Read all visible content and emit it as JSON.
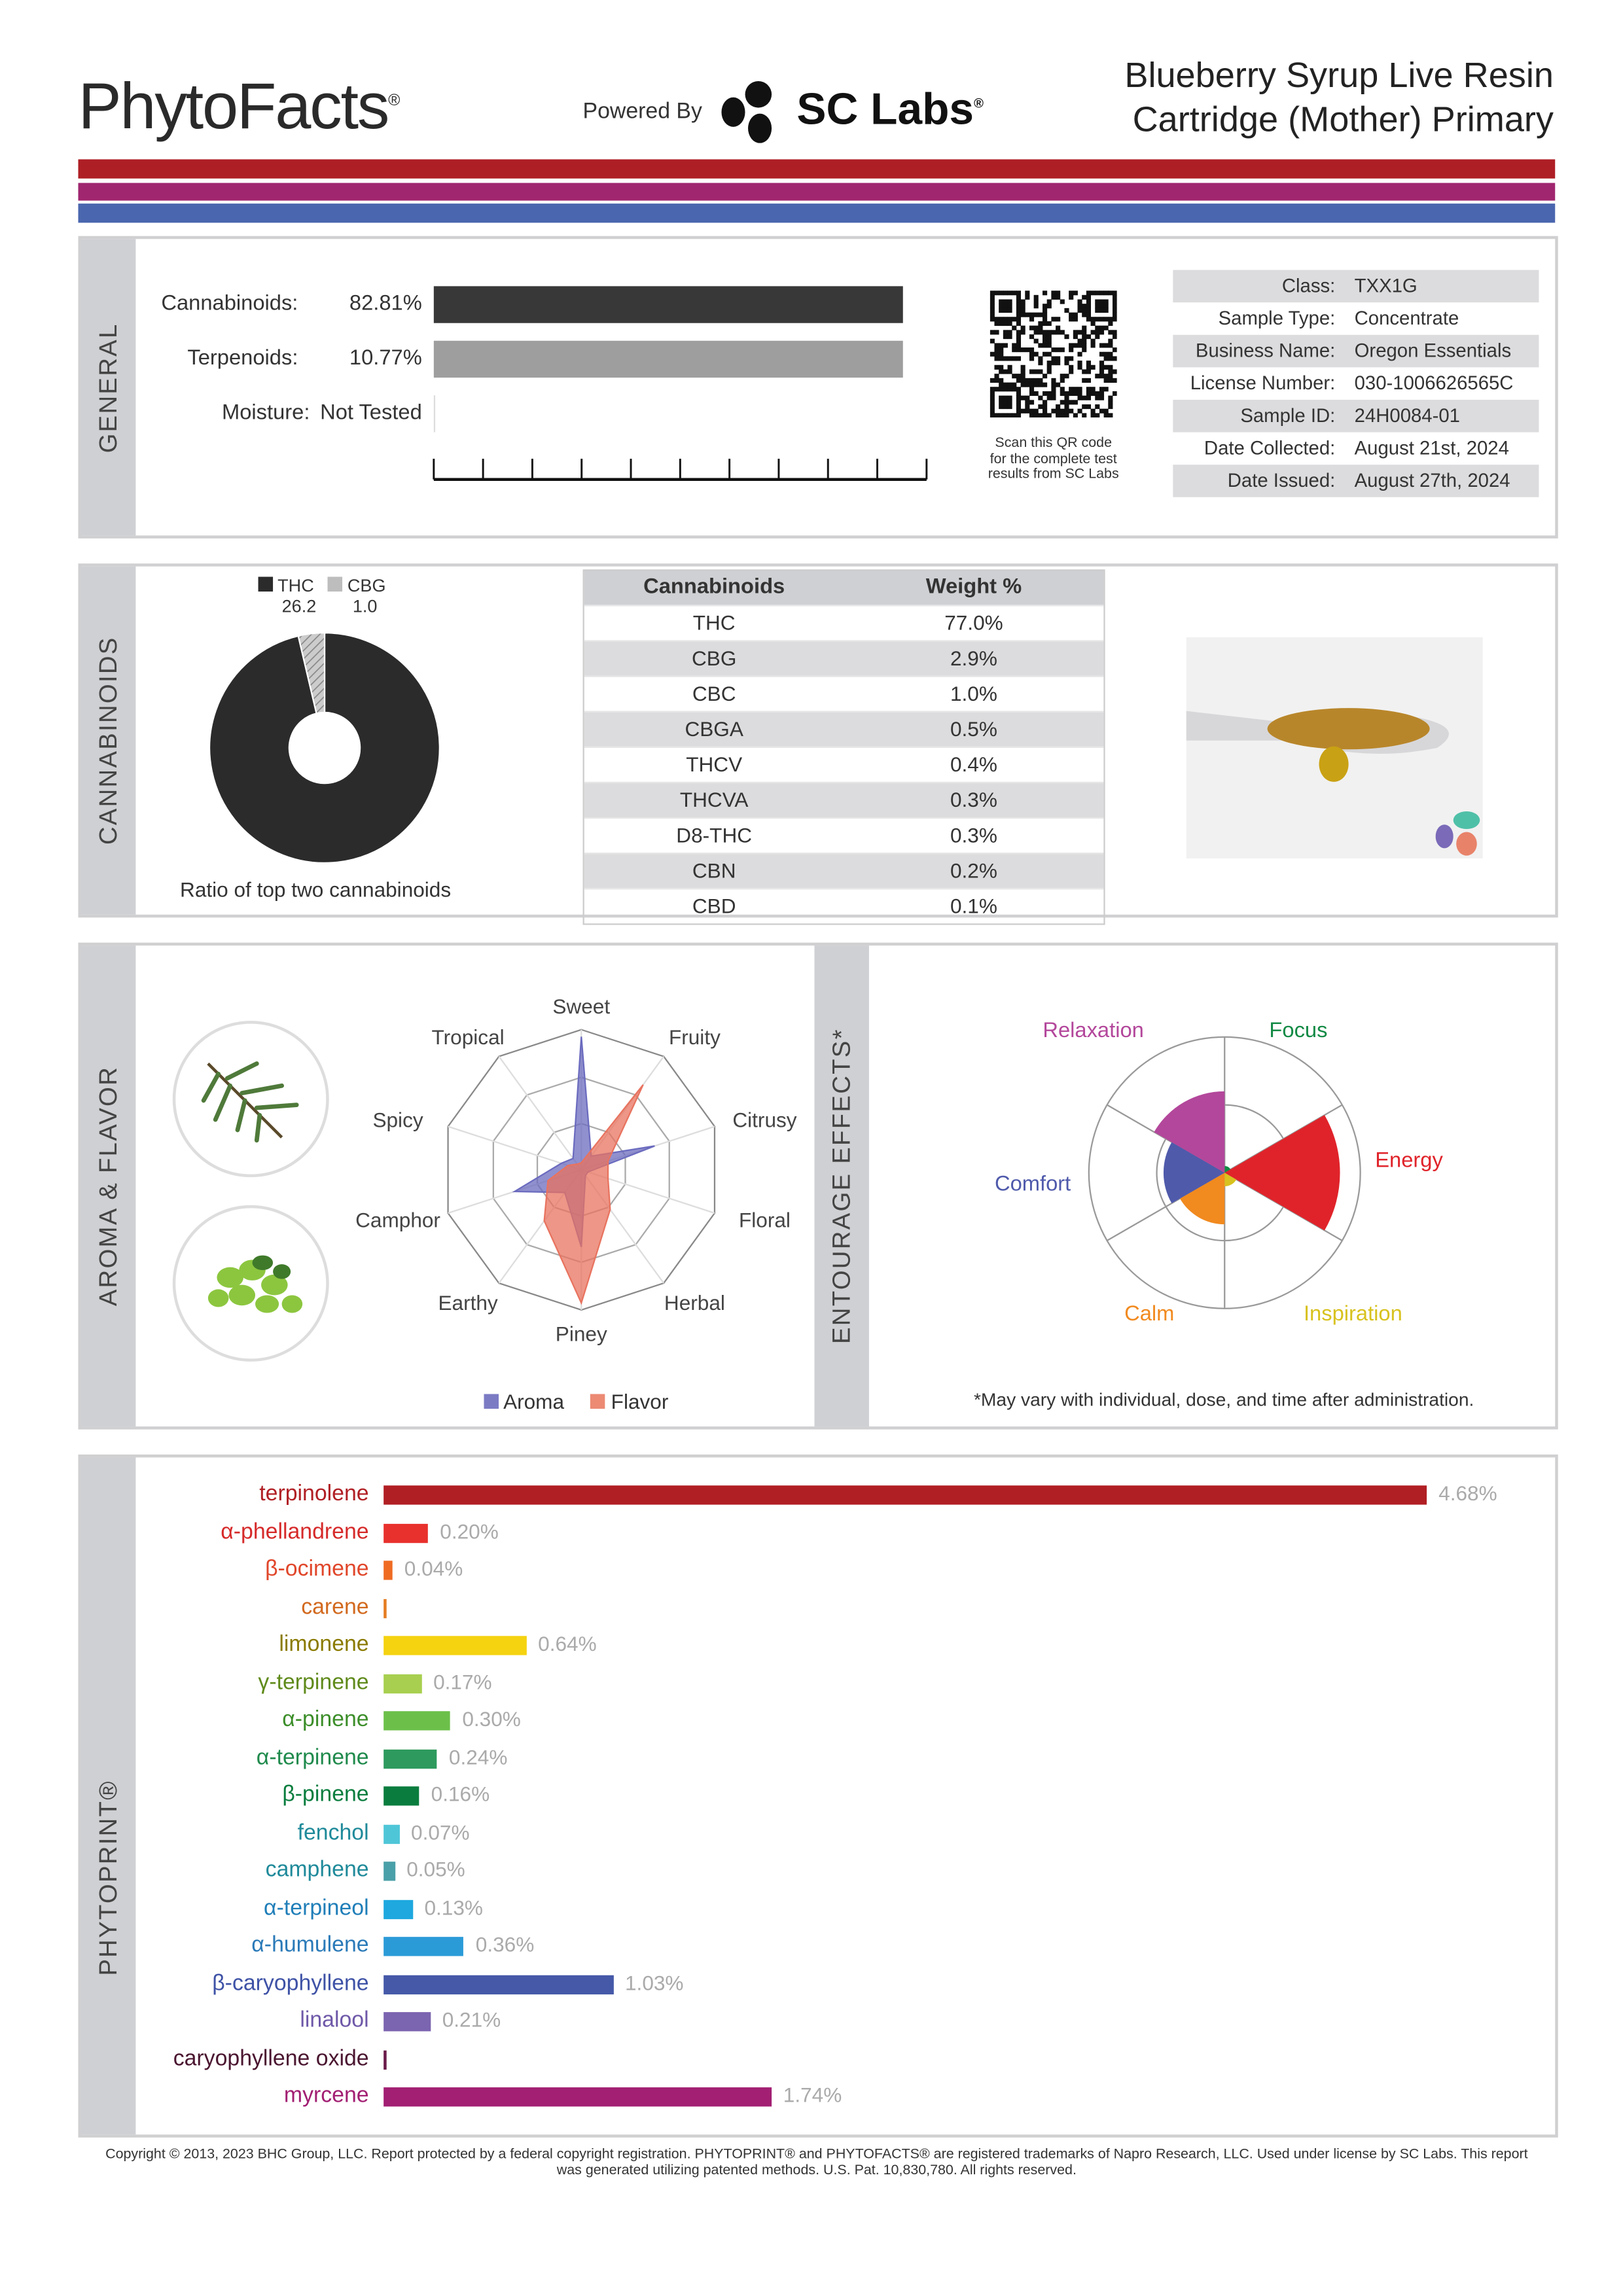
{
  "header": {
    "logo": "PhytoFacts",
    "powered_by": "Powered By",
    "partner": "SC Labs",
    "title_line1": "Blueberry Syrup Live Resin",
    "title_line2": "Cartridge (Mother) Primary"
  },
  "colors": {
    "red": "#ae1f25",
    "purple": "#a0266f",
    "blue": "#4a66ae"
  },
  "general": {
    "section": "GENERAL",
    "metrics": [
      {
        "label": "Cannabinoids:",
        "value": "82.81%",
        "fraction": 0.8281
      },
      {
        "label": "Terpenoids:",
        "value": "10.77%",
        "fraction": 0.1077
      },
      {
        "label": "Moisture:",
        "value": "Not Tested"
      }
    ],
    "qr_caption": [
      "Scan this QR code",
      "for the complete test",
      "results from SC Labs"
    ],
    "info": [
      {
        "k": "Class:",
        "v": "TXX1G"
      },
      {
        "k": "Sample Type:",
        "v": "Concentrate"
      },
      {
        "k": "Business Name:",
        "v": "Oregon Essentials"
      },
      {
        "k": "License Number:",
        "v": "030-1006626565C"
      },
      {
        "k": "Sample ID:",
        "v": "24H0084-01"
      },
      {
        "k": "Date Collected:",
        "v": "August 21st, 2024"
      },
      {
        "k": "Date Issued:",
        "v": "August 27th, 2024"
      }
    ]
  },
  "cannabinoids": {
    "section": "CANNABINOIDS",
    "ratio": {
      "a_name": "THC",
      "a_value": "26.2",
      "b_name": "CBG",
      "b_value": "1.0",
      "caption": "Ratio of top two cannabinoids"
    },
    "table_headers": [
      "Cannabinoids",
      "Weight %"
    ],
    "rows": [
      [
        "THC",
        "77.0%"
      ],
      [
        "CBG",
        "2.9%"
      ],
      [
        "CBC",
        "1.0%"
      ],
      [
        "CBGA",
        "0.5%"
      ],
      [
        "THCV",
        "0.4%"
      ],
      [
        "THCVA",
        "0.3%"
      ],
      [
        "D8-THC",
        "0.3%"
      ],
      [
        "CBN",
        "0.2%"
      ],
      [
        "CBD",
        "0.1%"
      ]
    ]
  },
  "aroma": {
    "section": "AROMA & FLAVOR",
    "legend": [
      "Aroma",
      "Flavor"
    ]
  },
  "entourage": {
    "section": "ENTOURAGE EFFECTS*",
    "note": "*May vary with individual, dose, and time after administration."
  },
  "chart_data": [
    {
      "type": "radar",
      "axes": [
        "Sweet",
        "Fruity",
        "Citrusy",
        "Floral",
        "Herbal",
        "Piney",
        "Earthy",
        "Camphor",
        "Spicy",
        "Tropical"
      ],
      "range": [
        0,
        1
      ],
      "series": [
        {
          "name": "Aroma",
          "color": "#6b6bbf",
          "values": [
            0.95,
            0.12,
            0.55,
            0.05,
            0.05,
            0.55,
            0.2,
            0.5,
            0.15,
            0.1
          ]
        },
        {
          "name": "Flavor",
          "color": "#e8735f",
          "values": [
            0.05,
            0.75,
            0.2,
            0.2,
            0.35,
            0.95,
            0.45,
            0.25,
            0.1,
            0.05
          ]
        }
      ]
    },
    {
      "type": "polar-area",
      "categories": [
        "Focus",
        "Energy",
        "Inspiration",
        "Calm",
        "Comfort",
        "Relaxation"
      ],
      "colors": [
        "#138a45",
        "#e0232a",
        "#d8c21f",
        "#f18a1f",
        "#4f5aab",
        "#b3479b"
      ],
      "values": [
        0.05,
        0.85,
        0.1,
        0.38,
        0.45,
        0.6
      ],
      "range": [
        0,
        1
      ]
    },
    {
      "type": "bar",
      "title": "PHYTOPRINT®",
      "unit": "%",
      "categories": [
        "terpinolene",
        "α-phellandrene",
        "β-ocimene",
        "carene",
        "limonene",
        "γ-terpinene",
        "α-pinene",
        "α-terpinene",
        "β-pinene",
        "fenchol",
        "camphene",
        "α-terpineol",
        "α-humulene",
        "β-caryophyllene",
        "linalool",
        "caryophyllene oxide",
        "myrcene"
      ],
      "values": [
        4.68,
        0.2,
        0.04,
        0.01,
        0.64,
        0.17,
        0.3,
        0.24,
        0.16,
        0.07,
        0.05,
        0.13,
        0.36,
        1.03,
        0.21,
        0.01,
        1.74
      ],
      "labels": [
        "4.68%",
        "0.20%",
        "0.04%",
        "",
        "0.64%",
        "0.17%",
        "0.30%",
        "0.24%",
        "0.16%",
        "0.07%",
        "0.05%",
        "0.13%",
        "0.36%",
        "1.03%",
        "0.21%",
        "",
        "1.74%"
      ],
      "bar_colors": [
        "#b01f24",
        "#e8312d",
        "#ef6b22",
        "#e57d22",
        "#f5d311",
        "#a8cf4f",
        "#6cc04a",
        "#2e9a5e",
        "#0a7d3e",
        "#4fc6d8",
        "#4aa0a8",
        "#1ea8df",
        "#2b9bd8",
        "#4559a8",
        "#7b64b0",
        "#6a1b4a",
        "#a21f73"
      ],
      "label_colors": [
        "#b01f24",
        "#d62a2a",
        "#e0462a",
        "#d2691e",
        "#8a7a00",
        "#5f8a1a",
        "#3c8e2a",
        "#1f8a4c",
        "#0a7d3e",
        "#1f8a9a",
        "#1f8a9a",
        "#1f7eb8",
        "#2a7ab8",
        "#3e52a6",
        "#6e58a8",
        "#4a1530",
        "#a21f73"
      ]
    }
  ],
  "phytoprint": {
    "section": "PHYTOPRINT®"
  },
  "footer": {
    "line1": "Copyright © 2013, 2023 BHC Group, LLC. Report protected by a federal copyright registration. PHYTOPRINT® and PHYTOFACTS® are registered trademarks of Napro Research, LLC. Used under license by SC Labs. This report",
    "line2": "was generated utilizing patented methods. U.S. Pat. 10,830,780. All rights reserved."
  }
}
